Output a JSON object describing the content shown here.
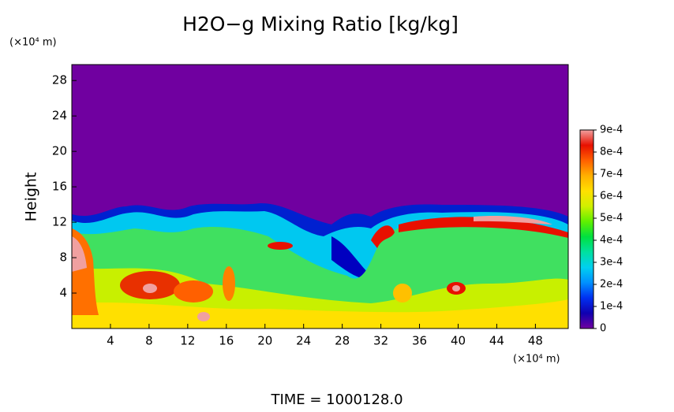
{
  "chart_data": {
    "type": "heatmap",
    "title": "H2O−g Mixing Ratio [kg/kg]",
    "y_label": "Height",
    "x_unit": "(×10⁴ m)",
    "y_unit": "(×10⁴ m)",
    "footer": "TIME = 1000128.0",
    "xlim": [
      0,
      51.4
    ],
    "xticks": [
      4,
      8,
      12,
      16,
      20,
      24,
      28,
      32,
      36,
      40,
      44,
      48
    ],
    "ylim": [
      0,
      29.8
    ],
    "yticks": [
      4,
      8,
      12,
      16,
      20,
      24,
      28
    ],
    "colorbar": {
      "lim": [
        0,
        0.0009
      ],
      "ticks": [
        0,
        {
          "value": 0.0001,
          "label": "1e-4"
        },
        {
          "value": 0.0002,
          "label": "2e-4"
        },
        {
          "value": 0.0003,
          "label": "3e-4"
        },
        {
          "value": 0.0004,
          "label": "4e-4"
        },
        {
          "value": 0.0005,
          "label": "5e-4"
        },
        {
          "value": 0.0006,
          "label": "6e-4"
        },
        {
          "value": 0.0007,
          "label": "7e-4"
        },
        {
          "value": 0.0008,
          "label": "8e-4"
        },
        {
          "value": 0.0009,
          "label": "9e-4"
        }
      ],
      "colors": [
        "#7000a0",
        "#1000b0",
        "#0030f0",
        "#0090ff",
        "#00d0f0",
        "#00e0a0",
        "#00e040",
        "#60f000",
        "#d0f000",
        "#ffe000",
        "#ffb000",
        "#ff6000",
        "#e81000",
        "#f0a0a0"
      ]
    }
  }
}
